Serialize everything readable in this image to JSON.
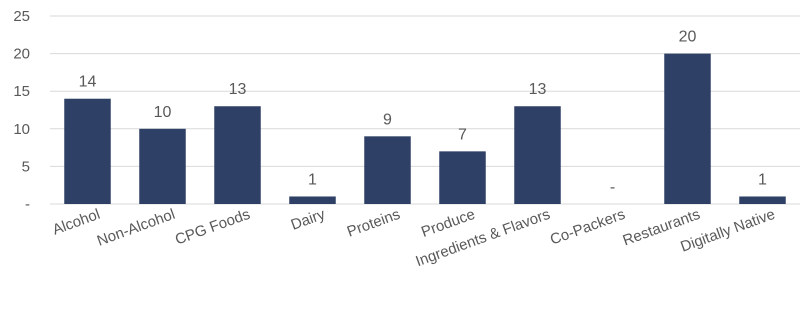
{
  "chart_data": {
    "type": "bar",
    "title": "",
    "xlabel": "",
    "ylabel": "",
    "ylim": [
      0,
      25
    ],
    "yticks": [
      0,
      5,
      10,
      15,
      20,
      25
    ],
    "ytick_labels": [
      "-",
      "5",
      "10",
      "15",
      "20",
      "25"
    ],
    "grid": true,
    "legend": "none",
    "bar_color": "#2E4065",
    "grid_color": "#D9D9D9",
    "text_color": "#595959",
    "categories": [
      "Alcohol",
      "Non-Alcohol",
      "CPG Foods",
      "Dairy",
      "Proteins",
      "Produce",
      "Ingredients & Flavors",
      "Co-Packers",
      "Restaurants",
      "Digitally Native"
    ],
    "values": [
      14,
      10,
      13,
      1,
      9,
      7,
      13,
      0,
      20,
      1
    ],
    "data_labels": [
      "14",
      "10",
      "13",
      "1",
      "9",
      "7",
      "13",
      "-",
      "20",
      "1"
    ]
  }
}
